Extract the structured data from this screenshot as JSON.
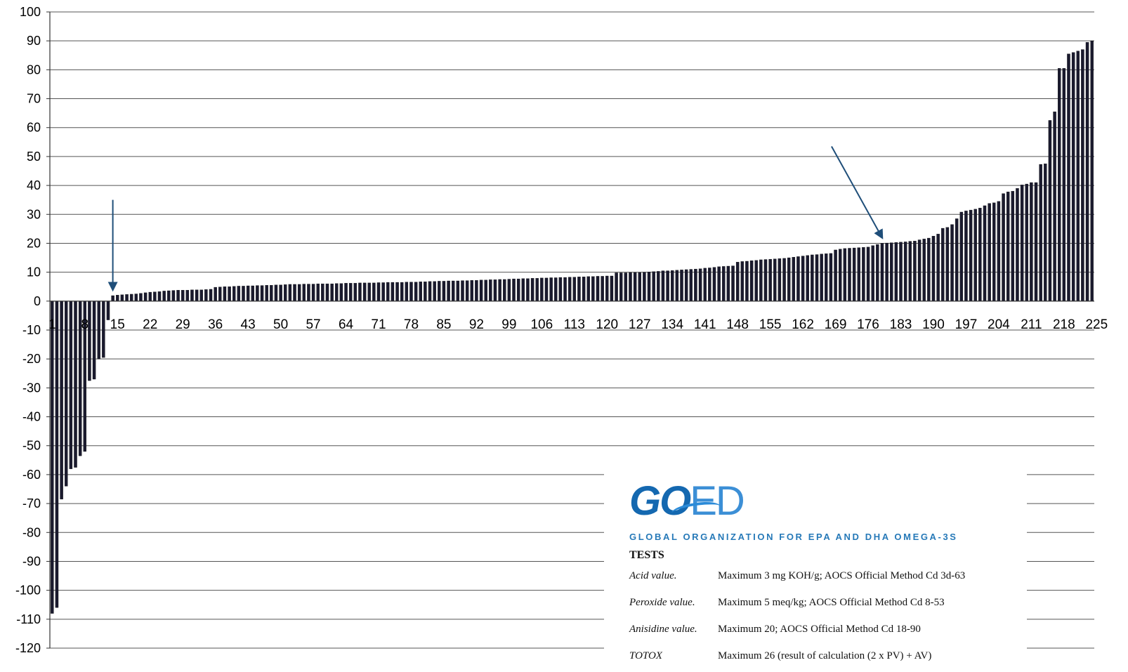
{
  "chart_data": {
    "type": "bar",
    "title": "",
    "xlabel": "",
    "ylabel": "",
    "ylim": [
      -120,
      100
    ],
    "yticks": [
      100,
      90,
      80,
      70,
      60,
      50,
      40,
      30,
      20,
      10,
      0,
      -10,
      -20,
      -30,
      -40,
      -50,
      -60,
      -70,
      -80,
      -90,
      -100,
      -110,
      -120
    ],
    "xtick_labels": [
      "1",
      "8",
      "15",
      "22",
      "29",
      "36",
      "43",
      "50",
      "57",
      "64",
      "71",
      "78",
      "85",
      "92",
      "99",
      "106",
      "113",
      "120",
      "127",
      "134",
      "141",
      "148",
      "155",
      "162",
      "169",
      "176",
      "183",
      "190",
      "197",
      "204",
      "211",
      "218",
      "225"
    ],
    "grid": true,
    "bar_color": "#1a1a2e",
    "annotation_arrow_color": "#1f4e79",
    "annotation_arrows": [
      {
        "points_to_category": 14,
        "points_to_value": 2
      },
      {
        "points_to_category": 179,
        "points_to_value": 20
      }
    ],
    "categories_from": 1,
    "categories_to": 226,
    "values": [
      -108,
      -106,
      -68.5,
      -64,
      -58,
      -57.5,
      -53.5,
      -52,
      -27.5,
      -27,
      -20,
      -19.5,
      -6.5,
      1.9,
      2.1,
      2.2,
      2.3,
      2.4,
      2.5,
      2.7,
      2.9,
      3.1,
      3.2,
      3.3,
      3.5,
      3.6,
      3.7,
      3.8,
      3.8,
      3.8,
      3.9,
      3.9,
      3.9,
      4.0,
      4.1,
      4.8,
      4.9,
      5.0,
      5.0,
      5.1,
      5.2,
      5.2,
      5.3,
      5.3,
      5.4,
      5.4,
      5.5,
      5.5,
      5.6,
      5.6,
      5.7,
      5.8,
      5.8,
      5.8,
      5.9,
      5.9,
      5.9,
      6.0,
      6.0,
      6.0,
      6.0,
      6.1,
      6.1,
      6.2,
      6.2,
      6.2,
      6.3,
      6.3,
      6.3,
      6.3,
      6.4,
      6.4,
      6.5,
      6.5,
      6.5,
      6.5,
      6.6,
      6.6,
      6.6,
      6.7,
      6.7,
      6.8,
      6.8,
      6.9,
      6.9,
      7.0,
      7.0,
      7.0,
      7.1,
      7.1,
      7.2,
      7.2,
      7.3,
      7.3,
      7.4,
      7.4,
      7.5,
      7.5,
      7.6,
      7.7,
      7.7,
      7.8,
      7.8,
      7.9,
      7.9,
      8.0,
      8.0,
      8.1,
      8.1,
      8.2,
      8.2,
      8.3,
      8.3,
      8.4,
      8.4,
      8.5,
      8.5,
      8.6,
      8.6,
      8.7,
      8.7,
      9.8,
      9.8,
      9.8,
      9.9,
      9.9,
      9.9,
      10.0,
      10.1,
      10.2,
      10.3,
      10.5,
      10.5,
      10.6,
      10.7,
      10.8,
      10.9,
      11.0,
      11.1,
      11.2,
      11.4,
      11.5,
      11.7,
      11.9,
      12.0,
      12.1,
      12.2,
      13.5,
      13.7,
      13.8,
      14.0,
      14.1,
      14.3,
      14.4,
      14.5,
      14.6,
      14.7,
      14.8,
      15.0,
      15.2,
      15.4,
      15.6,
      15.8,
      16.0,
      16.1,
      16.3,
      16.4,
      16.5,
      17.7,
      18.0,
      18.2,
      18.3,
      18.4,
      18.5,
      18.6,
      18.7,
      19.2,
      19.6,
      20.0,
      20.1,
      20.2,
      20.3,
      20.4,
      20.5,
      20.7,
      20.8,
      21.2,
      21.5,
      21.8,
      22.5,
      23.2,
      25.2,
      25.5,
      26.5,
      28.5,
      30.8,
      31.2,
      31.5,
      31.8,
      32.2,
      33.0,
      33.8,
      34.0,
      34.5,
      37.2,
      37.8,
      38.0,
      39.0,
      40.2,
      40.5,
      41.0,
      41.0,
      47.3,
      47.5,
      62.5,
      65.5,
      80.5,
      80.5,
      85.5,
      86.0,
      86.5,
      87.0,
      89.5,
      90.0
    ]
  },
  "goed": {
    "logo_go": "GO",
    "logo_ed": "ED",
    "org_name": "GLOBAL ORGANIZATION FOR EPA AND DHA OMEGA-3S",
    "tests_heading": "TESTS",
    "rows": [
      {
        "term": "Acid value.",
        "desc": "Maximum 3 mg KOH/g; AOCS Official Method Cd 3d-63"
      },
      {
        "term": "Peroxide value.",
        "desc": "Maximum 5 meq/kg; AOCS Official Method Cd 8-53"
      },
      {
        "term": "Anisidine value.",
        "desc": "Maximum 20; AOCS Official Method Cd 18-90"
      },
      {
        "term": "TOTOX",
        "desc": "Maximum 26 (result of calculation  (2 x PV) + AV)"
      }
    ]
  }
}
